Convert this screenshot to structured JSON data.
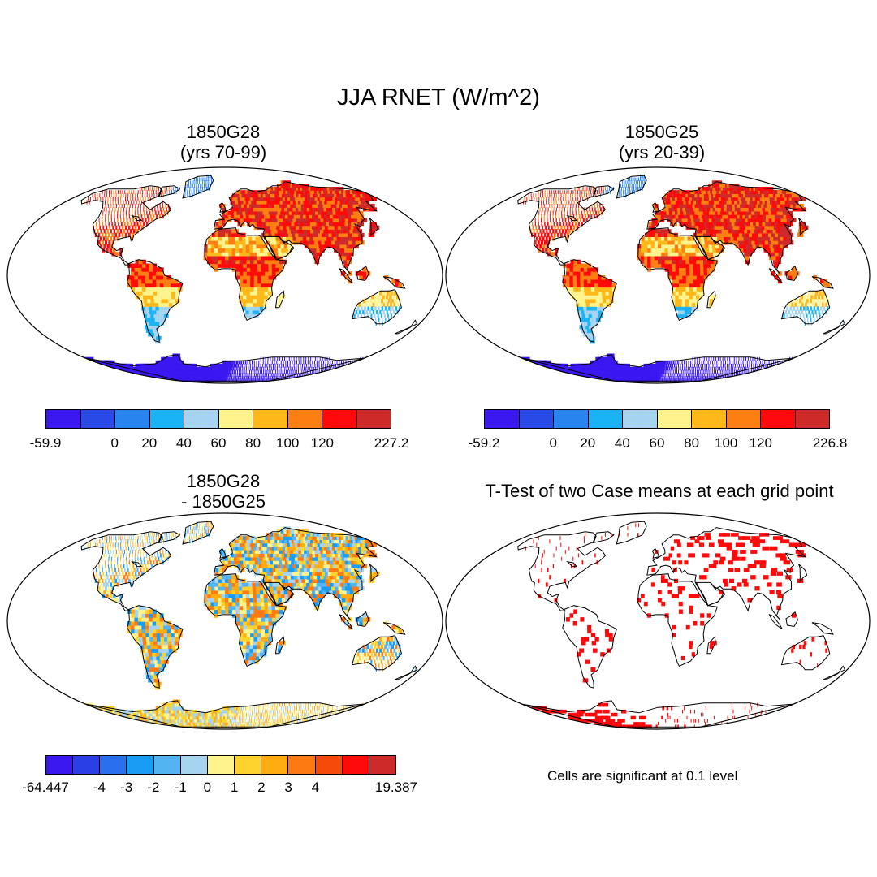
{
  "title": "JJA RNET (W/m^2)",
  "panels": [
    {
      "id": "p1",
      "title_line1": "1850G28",
      "title_line2": "(yrs 70-99)",
      "mode": "case",
      "colorbar": {
        "colors": [
          "#3b17f0",
          "#2a4ae8",
          "#2a84f0",
          "#1ab4f4",
          "#a5d3f0",
          "#fef38c",
          "#feb81a",
          "#fd7f12",
          "#fe0a0a",
          "#cf2a2a"
        ],
        "labels": [
          "-59.9",
          "0",
          "20",
          "40",
          "60",
          "80",
          "100",
          "120",
          "227.2"
        ]
      }
    },
    {
      "id": "p2",
      "title_line1": "1850G25",
      "title_line2": "(yrs 20-39)",
      "mode": "case",
      "colorbar": {
        "colors": [
          "#3b17f0",
          "#2a4ae8",
          "#2a84f0",
          "#1ab4f4",
          "#a5d3f0",
          "#fef38c",
          "#feb81a",
          "#fd7f12",
          "#fe0a0a",
          "#cf2a2a"
        ],
        "labels": [
          "-59.2",
          "0",
          "20",
          "40",
          "60",
          "80",
          "100",
          "120",
          "226.8"
        ]
      }
    },
    {
      "id": "p3",
      "title_line1": "1850G28",
      "title_line2": "- 1850G25",
      "mode": "diff",
      "colorbar": {
        "colors": [
          "#3b17f0",
          "#2a3fe4",
          "#2a70ee",
          "#1a9cf4",
          "#52b4f2",
          "#a5d3f0",
          "#fef38c",
          "#fed32e",
          "#feac12",
          "#fd7a12",
          "#f54a0a",
          "#fe0a0a",
          "#cf2a2a"
        ],
        "labels": [
          "-64.447",
          "-4",
          "-3",
          "-2",
          "-1",
          "0",
          "1",
          "2",
          "3",
          "4",
          "19.387"
        ]
      }
    },
    {
      "id": "p4",
      "title_line1": "T-Test of two Case means at each grid point",
      "title_line2": "",
      "mode": "ttest",
      "note": "Cells are significant at 0.1 level"
    }
  ],
  "colors": {
    "significant": "#fe0a0a",
    "outline": "#000000"
  }
}
